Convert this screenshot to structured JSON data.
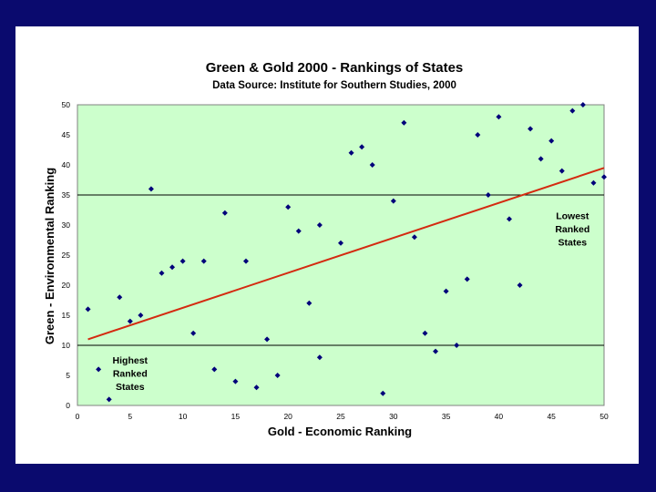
{
  "chart_data": {
    "type": "scatter",
    "title": "Green & Gold 2000 - Rankings of States",
    "subtitle": "Data Source:  Institute for Southern Studies, 2000",
    "xlabel": "Gold - Economic Ranking",
    "ylabel": "Green - Environmental Ranking",
    "xlim": [
      0,
      50
    ],
    "ylim": [
      0,
      50
    ],
    "xticks": [
      "0",
      "5",
      "10",
      "15",
      "20",
      "25",
      "30",
      "35",
      "40",
      "45",
      "50"
    ],
    "yticks": [
      "0",
      "5",
      "10",
      "15",
      "20",
      "25",
      "30",
      "35",
      "40",
      "45",
      "50"
    ],
    "reference_lines_y": [
      10,
      35
    ],
    "trendline": {
      "x": [
        1,
        50
      ],
      "y": [
        11,
        39.5
      ],
      "color": "#d42a10"
    },
    "plot_background": "#ccffcc",
    "point_color": "#00007a",
    "annotations": [
      {
        "lines": [
          "Highest",
          "Ranked",
          "States"
        ],
        "x": 5,
        "y": 7
      },
      {
        "lines": [
          "Lowest",
          "Ranked",
          "States"
        ],
        "x": 47,
        "y": 31
      }
    ],
    "points": [
      {
        "x": 1,
        "y": 16
      },
      {
        "x": 2,
        "y": 6
      },
      {
        "x": 3,
        "y": 1
      },
      {
        "x": 4,
        "y": 18
      },
      {
        "x": 5,
        "y": 14
      },
      {
        "x": 6,
        "y": 15
      },
      {
        "x": 7,
        "y": 36
      },
      {
        "x": 8,
        "y": 22
      },
      {
        "x": 9,
        "y": 23
      },
      {
        "x": 10,
        "y": 24
      },
      {
        "x": 11,
        "y": 12
      },
      {
        "x": 12,
        "y": 24
      },
      {
        "x": 13,
        "y": 6
      },
      {
        "x": 14,
        "y": 32
      },
      {
        "x": 15,
        "y": 4
      },
      {
        "x": 16,
        "y": 24
      },
      {
        "x": 17,
        "y": 3
      },
      {
        "x": 18,
        "y": 11
      },
      {
        "x": 19,
        "y": 5
      },
      {
        "x": 20,
        "y": 33
      },
      {
        "x": 21,
        "y": 29
      },
      {
        "x": 22,
        "y": 17
      },
      {
        "x": 23,
        "y": 30
      },
      {
        "x": 23,
        "y": 8
      },
      {
        "x": 25,
        "y": 27
      },
      {
        "x": 26,
        "y": 42
      },
      {
        "x": 27,
        "y": 43
      },
      {
        "x": 28,
        "y": 40
      },
      {
        "x": 29,
        "y": 2
      },
      {
        "x": 30,
        "y": 34
      },
      {
        "x": 31,
        "y": 47
      },
      {
        "x": 32,
        "y": 28
      },
      {
        "x": 33,
        "y": 12
      },
      {
        "x": 34,
        "y": 9
      },
      {
        "x": 35,
        "y": 19
      },
      {
        "x": 36,
        "y": 10
      },
      {
        "x": 37,
        "y": 21
      },
      {
        "x": 38,
        "y": 45
      },
      {
        "x": 39,
        "y": 35
      },
      {
        "x": 40,
        "y": 48
      },
      {
        "x": 41,
        "y": 31
      },
      {
        "x": 42,
        "y": 20
      },
      {
        "x": 43,
        "y": 46
      },
      {
        "x": 44,
        "y": 41
      },
      {
        "x": 45,
        "y": 44
      },
      {
        "x": 46,
        "y": 39
      },
      {
        "x": 47,
        "y": 49
      },
      {
        "x": 48,
        "y": 50
      },
      {
        "x": 49,
        "y": 37
      },
      {
        "x": 50,
        "y": 38
      }
    ]
  }
}
